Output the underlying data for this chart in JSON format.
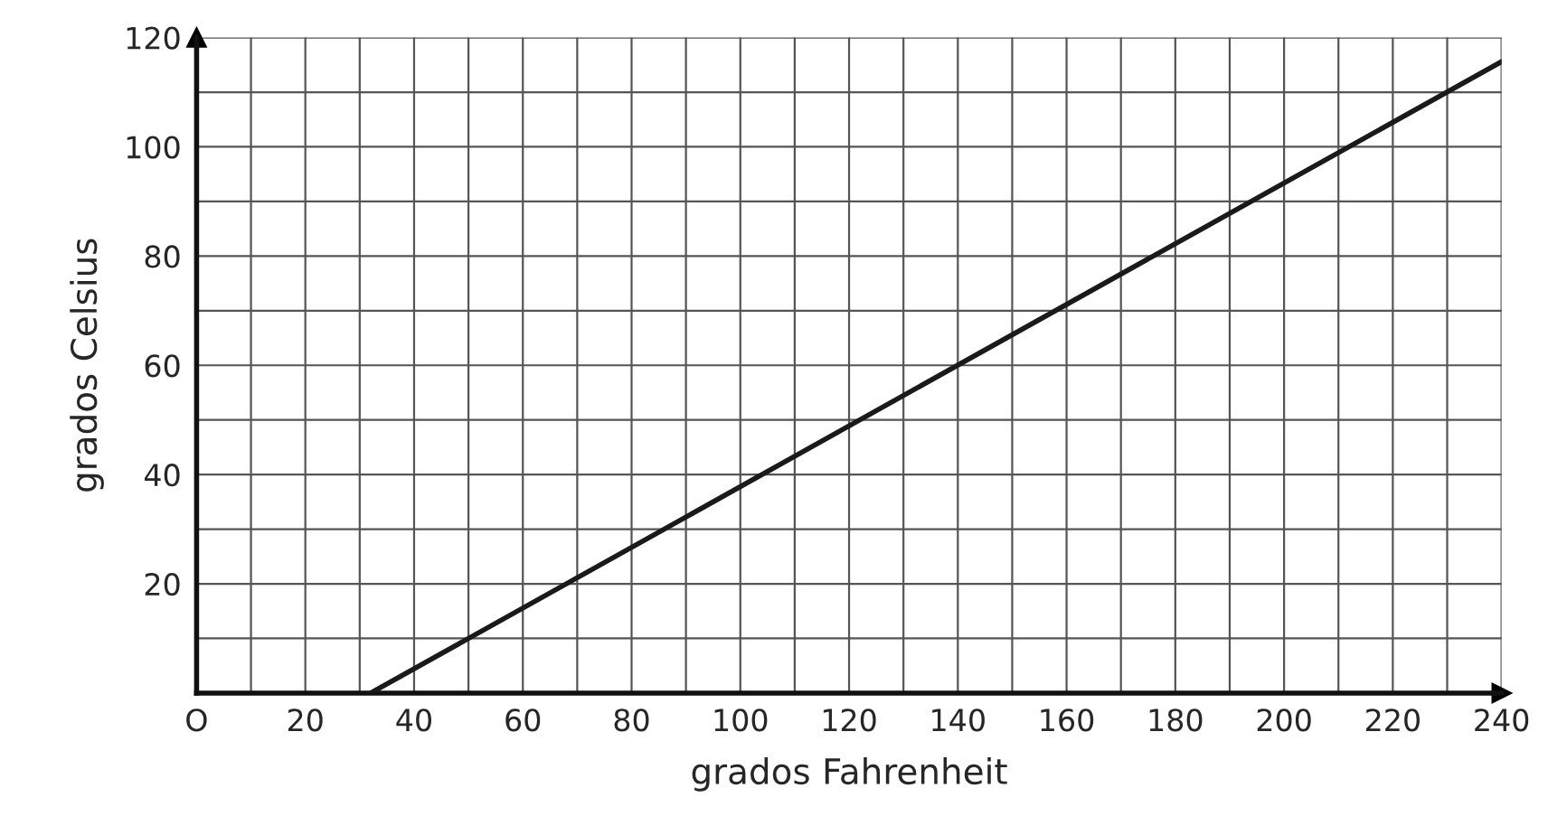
{
  "chart_data": {
    "type": "line",
    "xlabel": "grados Fahrenheit",
    "ylabel": "grados Celsius",
    "x": [
      32,
      240
    ],
    "series": [
      {
        "color": "#1a1a1a",
        "values": [
          0,
          115.6
        ]
      }
    ],
    "xlim": [
      0,
      240
    ],
    "ylim": [
      0,
      120
    ],
    "xticks": [
      {
        "value": 0,
        "label": "O"
      },
      {
        "value": 10,
        "label": null
      },
      20,
      {
        "value": 30,
        "label": null
      },
      40,
      {
        "value": 50,
        "label": null
      },
      60,
      {
        "value": 70,
        "label": null
      },
      80,
      {
        "value": 90,
        "label": null
      },
      100,
      {
        "value": 110,
        "label": null
      },
      120,
      {
        "value": 130,
        "label": null
      },
      140,
      {
        "value": 150,
        "label": null
      },
      160,
      {
        "value": 170,
        "label": null
      },
      180,
      {
        "value": 190,
        "label": null
      },
      200,
      {
        "value": 210,
        "label": null
      },
      220,
      {
        "value": 230,
        "label": null
      },
      240
    ],
    "yticks": [
      {
        "value": 0,
        "label": null
      },
      {
        "value": 10,
        "label": null
      },
      20,
      {
        "value": 30,
        "label": null
      },
      40,
      {
        "value": 50,
        "label": null
      },
      60,
      {
        "value": 70,
        "label": null
      },
      80,
      {
        "value": 90,
        "label": null
      },
      100,
      {
        "value": 110,
        "label": null
      },
      120
    ],
    "grid": true,
    "marker": "none",
    "line_style": "solid"
  }
}
